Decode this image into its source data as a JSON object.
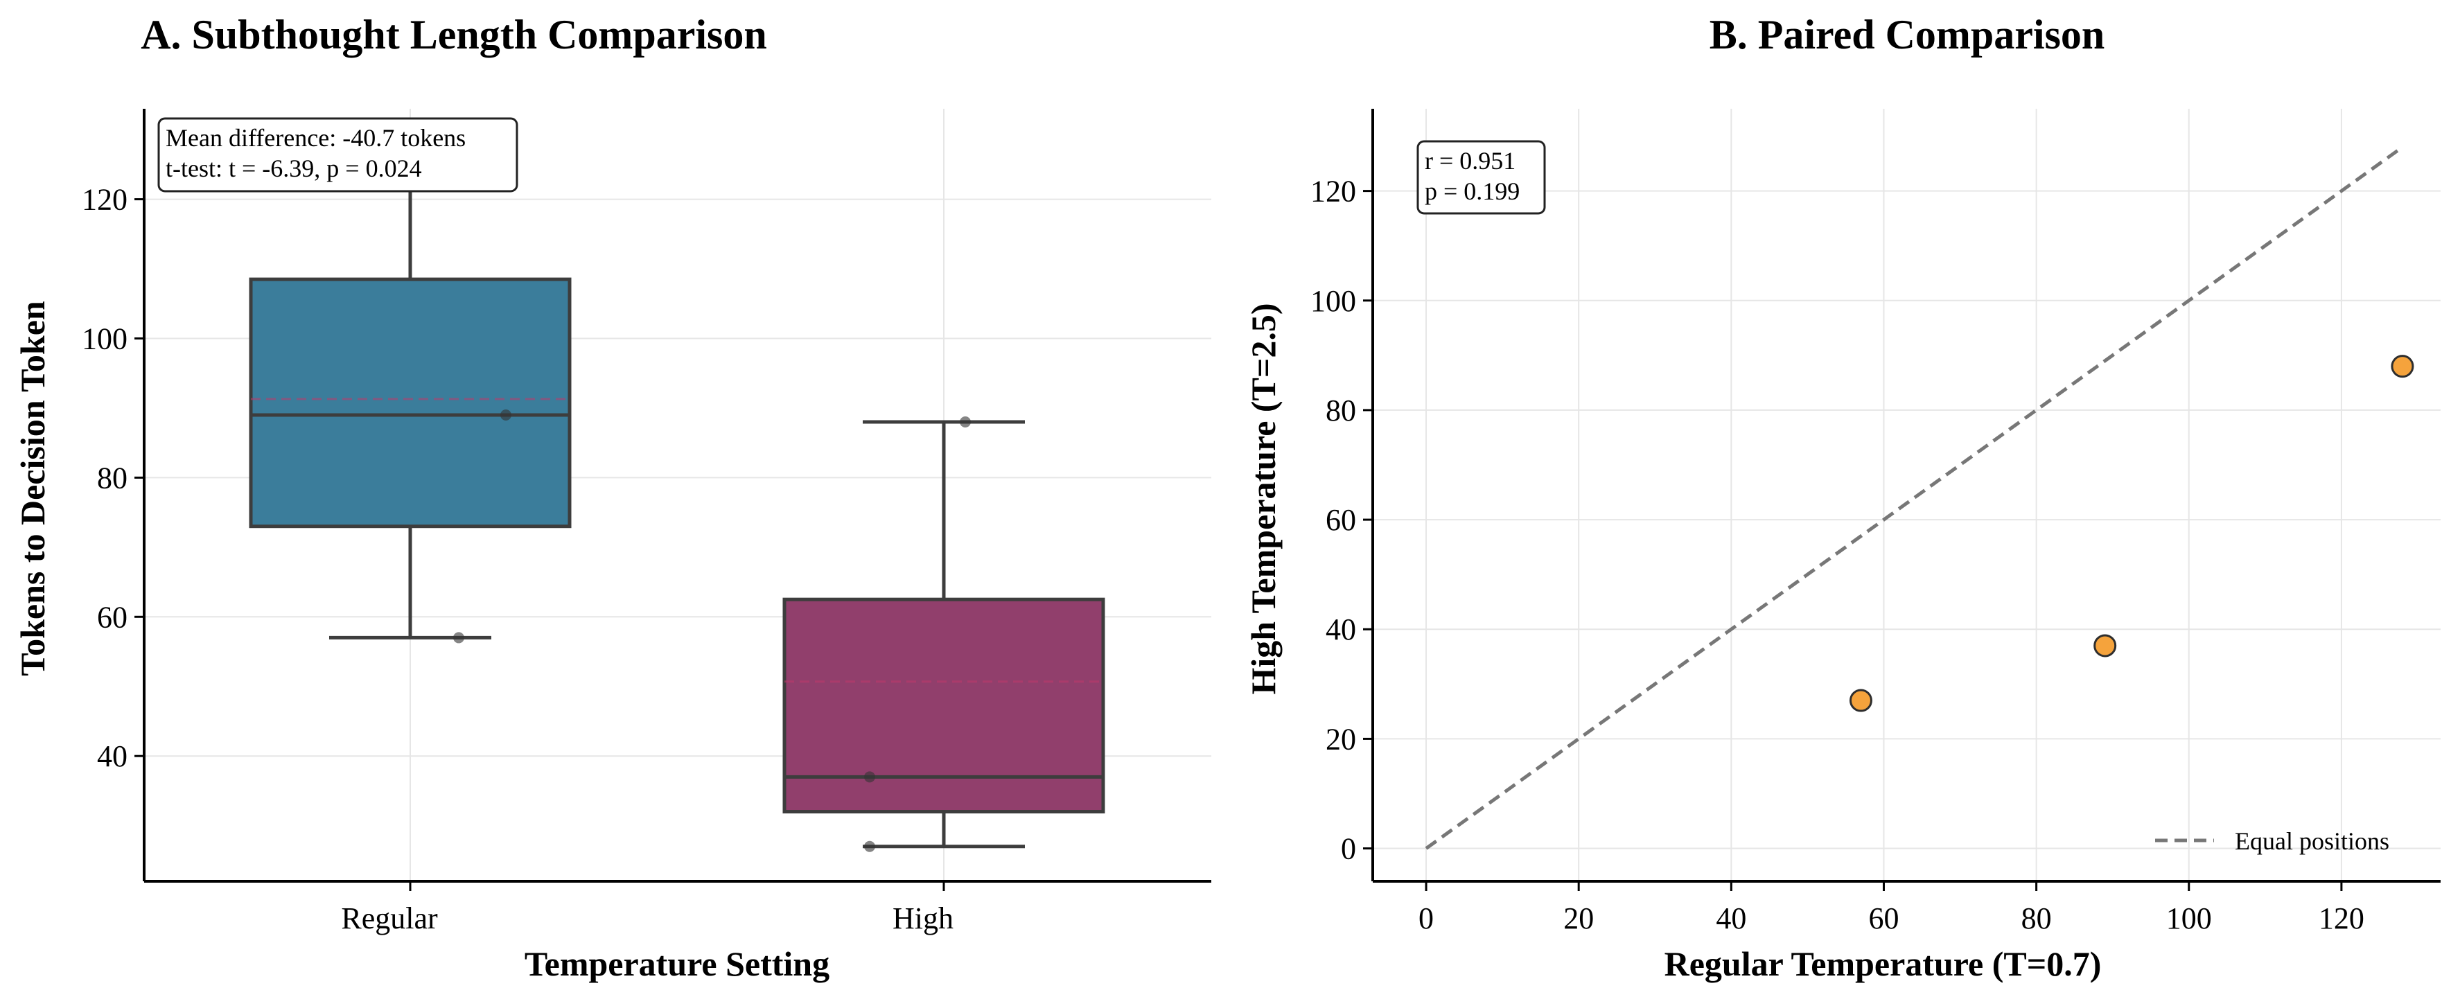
{
  "chart_data": [
    {
      "type": "box",
      "title": "A. Subthought Length Comparison",
      "xlabel": "Temperature Setting",
      "ylabel": "Tokens to Decision Token",
      "categories": [
        "Regular",
        "High"
      ],
      "ylim": [
        22,
        133
      ],
      "yticks": [
        40,
        60,
        80,
        100,
        120
      ],
      "grid": true,
      "boxes": [
        {
          "name": "Regular",
          "color": "#3b7d9b",
          "whisker_low": 57,
          "q1": 73,
          "median": 89,
          "q3": 108.5,
          "whisker_high": 128,
          "mean": 91.3,
          "points": [
            57,
            89,
            128
          ]
        },
        {
          "name": "High",
          "color": "#913f6c",
          "whisker_low": 27,
          "q1": 32,
          "median": 37,
          "q3": 62.5,
          "whisker_high": 88,
          "mean": 50.7,
          "points": [
            27,
            37,
            88
          ]
        }
      ],
      "annotation": [
        "Mean difference: -40.7 tokens",
        "t-test: t = -6.39, p = 0.024"
      ]
    },
    {
      "type": "scatter",
      "title": "B. Paired Comparison",
      "xlabel": "Regular Temperature (T=0.7)",
      "ylabel": "High Temperature (T=2.5)",
      "xlim": [
        -7,
        133
      ],
      "ylim": [
        -6,
        135
      ],
      "xticks": [
        0,
        20,
        40,
        60,
        80,
        100,
        120
      ],
      "yticks": [
        0,
        20,
        40,
        60,
        80,
        100,
        120
      ],
      "grid": true,
      "points": [
        {
          "x": 57,
          "y": 27
        },
        {
          "x": 89,
          "y": 37
        },
        {
          "x": 128,
          "y": 88
        }
      ],
      "point_color": "#f5a33c",
      "reference_line": {
        "name": "Equal positions",
        "x": [
          0,
          128
        ],
        "y": [
          0,
          128
        ],
        "color": "#777777"
      },
      "legend_position": "lower-right",
      "annotation": [
        "r = 0.951",
        "p = 0.199"
      ]
    }
  ]
}
